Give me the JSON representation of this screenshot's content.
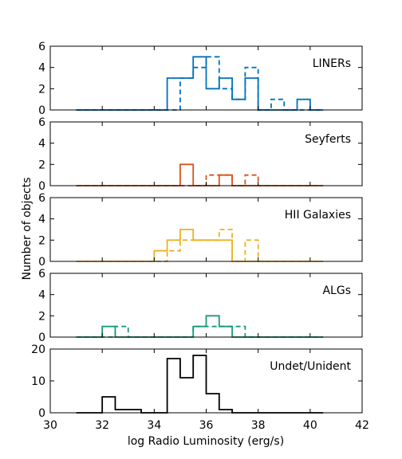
{
  "chart_data": {
    "type": "histogram",
    "xlabel": "log Radio Luminosity (erg/s)",
    "ylabel": "Number of objects",
    "xlim": [
      30,
      42
    ],
    "xticks": [
      30,
      32,
      34,
      36,
      38,
      40,
      42
    ],
    "bin_edges": [
      31,
      31.5,
      32,
      32.5,
      33,
      33.5,
      34,
      34.5,
      35,
      35.5,
      36,
      36.5,
      37,
      37.5,
      38,
      38.5,
      39,
      39.5,
      40,
      40.5
    ],
    "panels": [
      {
        "label": "LINERs",
        "color": "#0072BD",
        "ylim": [
          0,
          6
        ],
        "yticks": [
          0,
          2,
          4,
          6
        ],
        "solid": [
          0,
          0,
          0,
          0,
          0,
          0,
          0,
          3,
          3,
          5,
          2,
          3,
          1,
          3,
          0,
          0,
          0,
          1,
          0
        ],
        "dashed": [
          0,
          0,
          0,
          0,
          0,
          0,
          0,
          0,
          3,
          4,
          5,
          2,
          1,
          4,
          0,
          1,
          0,
          0,
          0
        ]
      },
      {
        "label": "Seyferts",
        "color": "#D95319",
        "ylim": [
          0,
          6
        ],
        "yticks": [
          0,
          2,
          4,
          6
        ],
        "solid": [
          0,
          0,
          0,
          0,
          0,
          0,
          0,
          0,
          2,
          0,
          0,
          1,
          0,
          0,
          0,
          0,
          0,
          0,
          0
        ],
        "dashed": [
          0,
          0,
          0,
          0,
          0,
          0,
          0,
          0,
          0,
          0,
          1,
          1,
          0,
          1,
          0,
          0,
          0,
          0,
          0
        ]
      },
      {
        "label": "HII Galaxies",
        "color": "#EDB120",
        "ylim": [
          0,
          6
        ],
        "yticks": [
          0,
          2,
          4,
          6
        ],
        "solid": [
          0,
          0,
          0,
          0,
          0,
          0,
          1,
          2,
          3,
          2,
          2,
          2,
          0,
          0,
          0,
          0,
          0,
          0,
          0
        ],
        "dashed": [
          0,
          0,
          0,
          0,
          0,
          0,
          0,
          1,
          2,
          2,
          2,
          3,
          0,
          2,
          0,
          0,
          0,
          0,
          0
        ]
      },
      {
        "label": "ALGs",
        "color": "#1A9A7B",
        "ylim": [
          0,
          6
        ],
        "yticks": [
          0,
          2,
          4,
          6
        ],
        "solid": [
          0,
          0,
          1,
          0,
          0,
          0,
          0,
          0,
          0,
          1,
          2,
          1,
          0,
          0,
          0,
          0,
          0,
          0,
          0
        ],
        "dashed": [
          0,
          0,
          0,
          1,
          0,
          0,
          0,
          0,
          0,
          1,
          1,
          1,
          1,
          0,
          0,
          0,
          0,
          0,
          0
        ]
      },
      {
        "label": "Undet/Unident",
        "color": "#000000",
        "ylim": [
          0,
          20
        ],
        "yticks": [
          0,
          10,
          20
        ],
        "solid": [
          0,
          0,
          5,
          1,
          1,
          0,
          0,
          17,
          11,
          18,
          6,
          1,
          0,
          0,
          0,
          0,
          0,
          0,
          0
        ],
        "dashed": null
      }
    ]
  }
}
